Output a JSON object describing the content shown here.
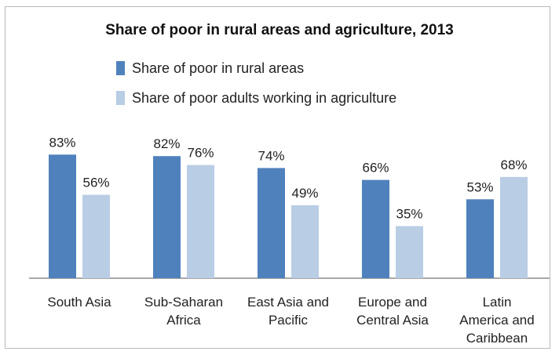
{
  "chart_data": {
    "type": "bar",
    "title": "Share of poor in rural areas and agriculture, 2013",
    "categories": [
      [
        "South Asia"
      ],
      [
        "Sub-Saharan",
        "Africa"
      ],
      [
        "East Asia and",
        "Pacific"
      ],
      [
        "Europe and",
        "Central Asia"
      ],
      [
        "Latin",
        "America and",
        "Caribbean"
      ]
    ],
    "series": [
      {
        "name": "Share of poor in rural areas",
        "color": "#4f81bd",
        "values": [
          83,
          82,
          74,
          66,
          53
        ],
        "labels": [
          "83%",
          "82%",
          "74%",
          "66%",
          "53%"
        ]
      },
      {
        "name": "Share of poor adults working in agriculture",
        "color": "#b9cde5",
        "values": [
          56,
          76,
          49,
          35,
          68
        ],
        "labels": [
          "56%",
          "76%",
          "49%",
          "35%",
          "68%"
        ]
      }
    ],
    "ylim": [
      0,
      100
    ],
    "grid": false,
    "legend_position": "top-left"
  }
}
